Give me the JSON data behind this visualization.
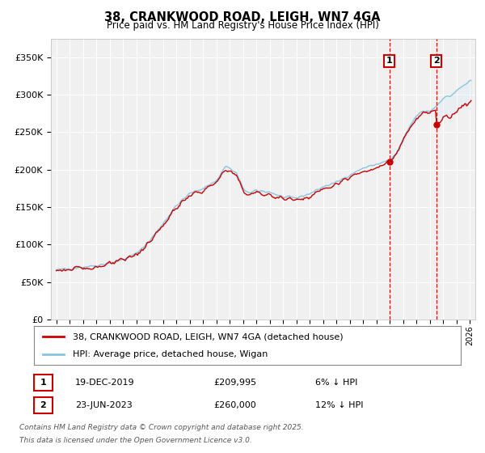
{
  "title": "38, CRANKWOOD ROAD, LEIGH, WN7 4GA",
  "subtitle": "Price paid vs. HM Land Registry's House Price Index (HPI)",
  "legend_label_red": "38, CRANKWOOD ROAD, LEIGH, WN7 4GA (detached house)",
  "legend_label_blue": "HPI: Average price, detached house, Wigan",
  "annotation1_date": "19-DEC-2019",
  "annotation1_price": "£209,995",
  "annotation1_hpi": "6% ↓ HPI",
  "annotation2_date": "23-JUN-2023",
  "annotation2_price": "£260,000",
  "annotation2_hpi": "12% ↓ HPI",
  "footnote1": "Contains HM Land Registry data © Crown copyright and database right 2025.",
  "footnote2": "This data is licensed under the Open Government Licence v3.0.",
  "ylim": [
    0,
    375000
  ],
  "yticks": [
    0,
    50000,
    100000,
    150000,
    200000,
    250000,
    300000,
    350000
  ],
  "background_color": "#ffffff",
  "plot_bg_color": "#f0f0f0",
  "grid_color": "#ffffff",
  "red_color": "#cc0000",
  "blue_color": "#89c4e1",
  "shade_color": "#d6eaf8",
  "vline_color": "#cc0000",
  "annotation_box_color": "#cc0000",
  "t1_year": 2019.96,
  "t1_price": 209995,
  "t2_year": 2023.47,
  "t2_price": 260000,
  "xlim_left": 1994.6,
  "xlim_right": 2026.4
}
